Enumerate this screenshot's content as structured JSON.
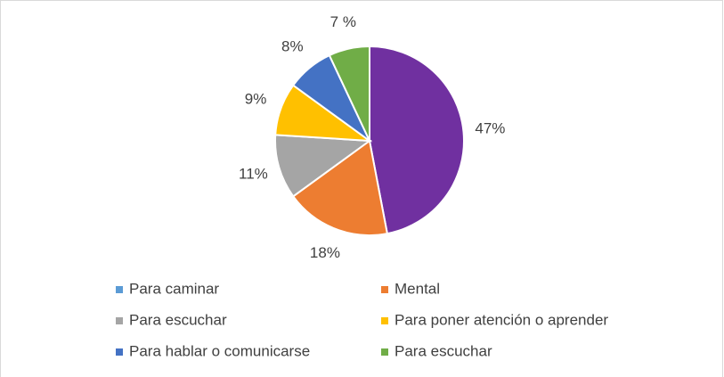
{
  "chart_data": {
    "type": "pie",
    "categories": [
      "Para caminar",
      "Mental",
      "Para escuchar",
      "Para poner atención o aprender",
      "Para hablar o comunicarse",
      "Para escuchar"
    ],
    "values": [
      47,
      18,
      11,
      9,
      8,
      7
    ],
    "value_labels": [
      "47%",
      "18%",
      "11%",
      "9%",
      "8%",
      "7 %"
    ],
    "colors": [
      "#7030a0",
      "#ed7d31",
      "#a5a5a5",
      "#ffc000",
      "#4472c4",
      "#70ad47"
    ],
    "legend_colors": [
      "#5b9bd5",
      "#ed7d31",
      "#a5a5a5",
      "#ffc000",
      "#4472c4",
      "#70ad47"
    ]
  }
}
